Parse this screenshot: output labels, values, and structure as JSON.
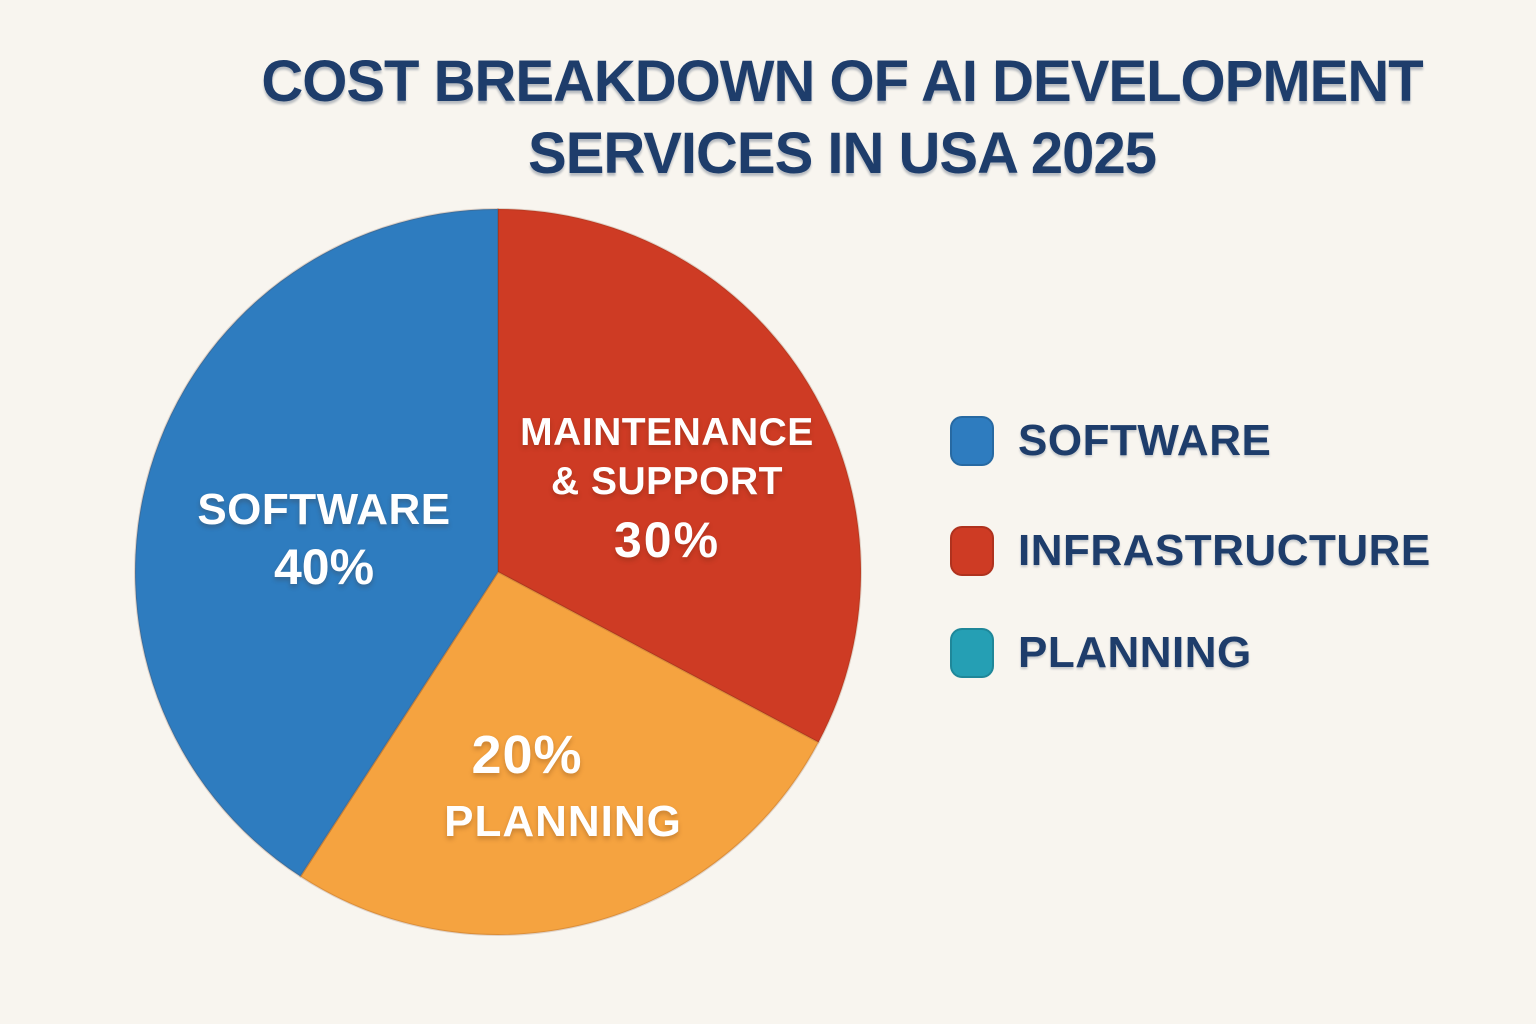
{
  "title": {
    "line1": "COST BREAKDOWN OF AI DEVELOPMENT",
    "line2": "SERVICES IN USA 2025"
  },
  "colors": {
    "background": "#f8f5ef",
    "title_navy": "#1e3d6b",
    "slice_blue": "#2e7cbf",
    "slice_red": "#ce3b24",
    "slice_orange": "#f5a340",
    "legend_teal": "#259fb4",
    "slice_text": "#ffffff"
  },
  "chart_data": {
    "type": "pie",
    "title": "COST BREAKDOWN OF AI DEVELOPMENT SERVICES IN USA 2025",
    "legend_position": "right",
    "slices": [
      {
        "key": "maintenance-support",
        "label": "MAINTENANCE & SUPPORT",
        "value_pct": 30,
        "color": "#ce3b24",
        "start_angle_deg": 0,
        "end_angle_deg": 118
      },
      {
        "key": "planning",
        "label": "PLANNING",
        "value_pct": 20,
        "color": "#f5a340",
        "start_angle_deg": 118,
        "end_angle_deg": 213
      },
      {
        "key": "software",
        "label": "SOFTWARE",
        "value_pct": 40,
        "color": "#2e7cbf",
        "start_angle_deg": 213,
        "end_angle_deg": 360
      }
    ],
    "legend": [
      {
        "label": "SOFTWARE",
        "color": "#2e7cbf"
      },
      {
        "label": "INFRASTRUCTURE",
        "color": "#ce3b24"
      },
      {
        "label": "PLANNING",
        "color": "#259fb4"
      }
    ]
  },
  "pie_labels": {
    "software": {
      "name": "SOFTWARE",
      "pct": "40%"
    },
    "maintenance": {
      "line1": "MAINTENANCE",
      "line2": "& SUPPORT",
      "pct": "30%"
    },
    "planning": {
      "pct": "20%",
      "name": "PLANNING"
    }
  }
}
